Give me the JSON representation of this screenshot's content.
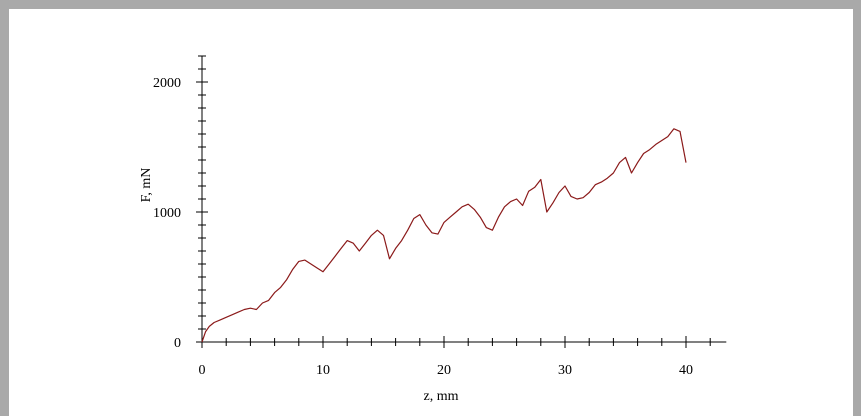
{
  "chart_data": {
    "type": "line",
    "title": "",
    "xlabel": "z, mm",
    "ylabel": "F, mN",
    "xlim": [
      0,
      43
    ],
    "ylim": [
      0,
      2000
    ],
    "x_ticks": [
      0,
      10,
      20,
      30,
      40
    ],
    "y_ticks": [
      0,
      1000,
      2000
    ],
    "x_tick_labels": [
      "0",
      "10",
      "20",
      "30",
      "40"
    ],
    "y_tick_labels": [
      "0",
      "1000",
      "2000"
    ],
    "grid": false,
    "line_color": "#8b1a1a",
    "series": [
      {
        "x": [
          0,
          0.3,
          0.6,
          1.0,
          1.5,
          2.0,
          2.5,
          3.0,
          3.5,
          4.0,
          4.5,
          5.0,
          5.5,
          6.0,
          6.5,
          7.0,
          7.5,
          8.0,
          8.5,
          9.0,
          9.5,
          10.0,
          10.5,
          11.0,
          11.5,
          12.0,
          12.5,
          13.0,
          13.5,
          14.0,
          14.5,
          15.0,
          15.5,
          16.0,
          16.5,
          17.0,
          17.5,
          18.0,
          18.5,
          19.0,
          19.5,
          20.0,
          20.5,
          21.0,
          21.5,
          22.0,
          22.5,
          23.0,
          23.5,
          24.0,
          24.5,
          25.0,
          25.5,
          26.0,
          26.5,
          27.0,
          27.5,
          28.0,
          28.5,
          29.0,
          29.5,
          30.0,
          30.5,
          31.0,
          31.5,
          32.0,
          32.5,
          33.0,
          33.5,
          34.0,
          34.5,
          35.0,
          35.5,
          36.0,
          36.5,
          37.0,
          37.5,
          38.0,
          38.5,
          39.0,
          39.5,
          40.0
        ],
        "y": [
          0,
          80,
          120,
          150,
          170,
          190,
          210,
          230,
          250,
          260,
          250,
          300,
          320,
          380,
          420,
          480,
          560,
          620,
          630,
          600,
          570,
          540,
          600,
          660,
          720,
          780,
          760,
          700,
          760,
          820,
          860,
          820,
          640,
          720,
          780,
          860,
          950,
          980,
          900,
          840,
          830,
          920,
          960,
          1000,
          1040,
          1060,
          1020,
          960,
          880,
          860,
          960,
          1040,
          1080,
          1100,
          1050,
          1160,
          1190,
          1250,
          1000,
          1070,
          1150,
          1200,
          1120,
          1100,
          1110,
          1150,
          1210,
          1230,
          1260,
          1300,
          1380,
          1420,
          1300,
          1380,
          1450,
          1480,
          1520,
          1550,
          1580,
          1640,
          1620,
          1380
        ]
      }
    ]
  }
}
